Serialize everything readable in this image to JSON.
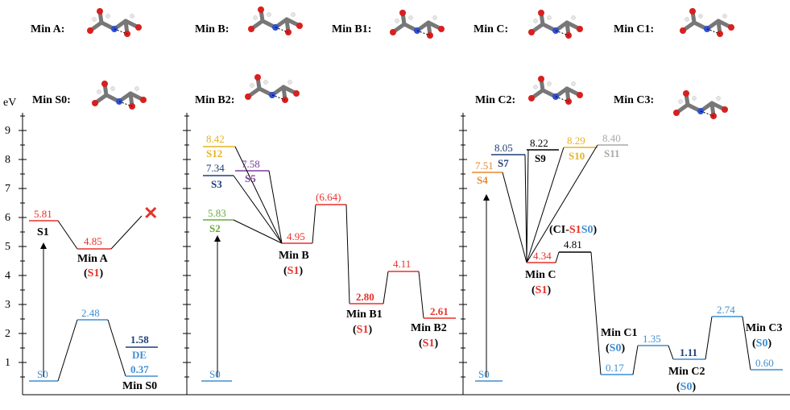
{
  "axis": {
    "unit": "eV",
    "ticks": [
      "1",
      "2",
      "3",
      "4",
      "5",
      "6",
      "7",
      "8",
      "9"
    ]
  },
  "colors": {
    "red": "#e8312a",
    "blue": "#3f8fd2",
    "dark_blue": "#1f3e7a",
    "yellow": "#e6b325",
    "purple": "#7a3fa0",
    "green": "#6aa83a",
    "orange": "#e68a2e",
    "gray": "#a9a9a9",
    "black": "#000000"
  },
  "molecule_labels": {
    "min_a": "Min A:",
    "min_b": "Min B:",
    "min_b1": "Min B1:",
    "min_c": "Min C:",
    "min_c1": "Min C1:",
    "min_s0": "Min S0:",
    "min_b2": "Min B2:",
    "min_c2": "Min C2:",
    "min_c3": "Min C3:"
  },
  "panel_a": {
    "s0_label": "S0",
    "s1_value": "5.81",
    "s1_label": "S1",
    "min_a_value": "4.85",
    "min_a_name": "Min A",
    "min_a_state": "S1",
    "cross": "✕",
    "ts_value": "2.48",
    "de_value": "1.58",
    "de_label": "DE",
    "min_s0_value": "0.37",
    "min_s0_name": "Min S0"
  },
  "panel_b": {
    "s0_label": "S0",
    "s12_value": "8.42",
    "s12_label": "S12",
    "s5_value": "7.58",
    "s5_label": "S5",
    "s3_value": "7.34",
    "s3_label": "S3",
    "s2_value": "5.83",
    "s2_label": "S2",
    "min_b_value": "4.95",
    "min_b_name": "Min B",
    "min_b_state": "S1",
    "ts_value": "(6.64)",
    "min_b1_value": "2.80",
    "min_b1_name": "Min B1",
    "min_b1_state": "S1",
    "ts2_value": "4.11",
    "min_b2_value": "2.61",
    "min_b2_name": "Min B2",
    "min_b2_state": "S1"
  },
  "panel_c": {
    "s0_label": "S0",
    "s4_value": "7.51",
    "s4_label": "S4",
    "s7_value": "8.05",
    "s7_label": "S7",
    "s9_value": "8.22",
    "s9_label": "S9",
    "s10_value": "8.29",
    "s10_label": "S10",
    "s11_value": "8.40",
    "s11_label": "S11",
    "min_c_value": "4.34",
    "min_c_name": "Min C",
    "min_c_state": "S1",
    "ci_open": "(CI-",
    "ci_s1": "S1",
    "ci_s0": "S0",
    "ci_close": ")",
    "ci_value": "4.81",
    "min_c1_name": "Min C1",
    "min_c1_state": "S0",
    "min_c1_value": "0.17",
    "ts_c1c2_value": "1.35",
    "min_c2_value": "1.11",
    "min_c2_name": "Min C2",
    "min_c2_state": "S0",
    "ts_c2c3_value": "2.74",
    "min_c3_name": "Min C3",
    "min_c3_state": "S0",
    "min_c3_value": "0.60"
  }
}
